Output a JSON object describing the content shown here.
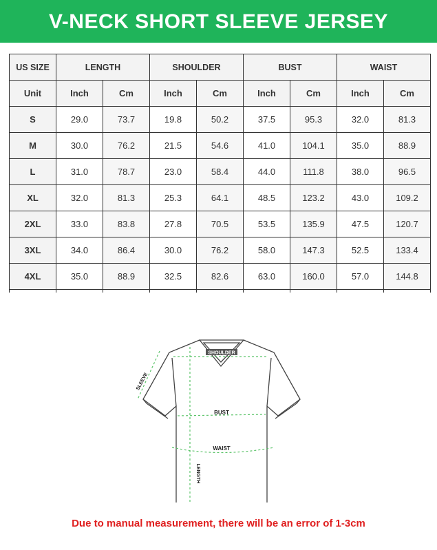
{
  "title": "V-NECK SHORT SLEEVE JERSEY",
  "table": {
    "headers": [
      "US SIZE",
      "LENGTH",
      "SHOULDER",
      "BUST",
      "WAIST"
    ],
    "units": [
      "Unit",
      "Inch",
      "Cm",
      "Inch",
      "Cm",
      "Inch",
      "Cm",
      "Inch",
      "Cm"
    ],
    "rows": [
      [
        "S",
        "29.0",
        "73.7",
        "19.8",
        "50.2",
        "37.5",
        "95.3",
        "32.0",
        "81.3"
      ],
      [
        "M",
        "30.0",
        "76.2",
        "21.5",
        "54.6",
        "41.0",
        "104.1",
        "35.0",
        "88.9"
      ],
      [
        "L",
        "31.0",
        "78.7",
        "23.0",
        "58.4",
        "44.0",
        "111.8",
        "38.0",
        "96.5"
      ],
      [
        "XL",
        "32.0",
        "81.3",
        "25.3",
        "64.1",
        "48.5",
        "123.2",
        "43.0",
        "109.2"
      ],
      [
        "2XL",
        "33.0",
        "83.8",
        "27.8",
        "70.5",
        "53.5",
        "135.9",
        "47.5",
        "120.7"
      ],
      [
        "3XL",
        "34.0",
        "86.4",
        "30.0",
        "76.2",
        "58.0",
        "147.3",
        "52.5",
        "133.4"
      ],
      [
        "4XL",
        "35.0",
        "88.9",
        "32.5",
        "82.6",
        "63.0",
        "160.0",
        "57.0",
        "144.8"
      ]
    ]
  },
  "diagram": {
    "labels": {
      "shoulder": "SHOULDER",
      "sleeve": "SLEEVE",
      "bust": "BUST",
      "waist": "WAIST",
      "length": "LENGTH"
    },
    "measure_color": "#5cc46a"
  },
  "note": "Due to manual measurement, there will be an error of 1-3cm",
  "colors": {
    "banner": "#1fb45a",
    "note": "#e02020"
  }
}
